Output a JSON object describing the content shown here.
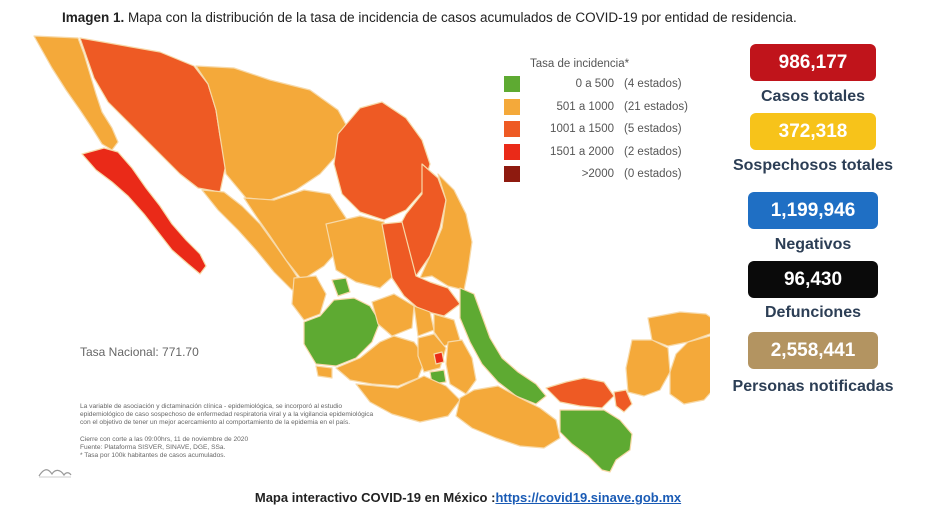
{
  "caption": {
    "prefix": "Imagen 1.",
    "text": "Mapa con la distribución de la tasa de incidencia de casos acumulados de COVID-19 por entidad de residencia."
  },
  "legend": {
    "title": "Tasa de incidencia*",
    "items": [
      {
        "range": "0 a   500",
        "count": "(4 estados)",
        "color": "#5eaa32"
      },
      {
        "range": "501 a  1000",
        "count": "(21 estados)",
        "color": "#f4a93a"
      },
      {
        "range": "1001 a  1500",
        "count": "(5 estados)",
        "color": "#ee5a24"
      },
      {
        "range": "1501 a  2000",
        "count": "(2 estados)",
        "color": "#ea2a18"
      },
      {
        "range": ">2000",
        "count": "(0 estados)",
        "color": "#8e1a0f"
      }
    ]
  },
  "map": {
    "national_rate": "Tasa Nacional: 771.70",
    "notes": [
      "La variable de asociación y dictaminación clínica - epidemiológica, se incorporó al estudio",
      "epidemiológico de caso sospechoso de enfermedad respiratoria viral y a la vigilancia epidemiológica",
      "con el objetivo de tener un mejor acercamiento al comportamiento de la epidemia en el país.",
      "",
      "Cierre con corte a las 09:00hrs, 11 de noviembre de 2020",
      "Fuente: Plataforma SISVER, SINAVE, DGE, SSa.",
      "* Tasa por 100k habitantes de casos acumulados."
    ]
  },
  "stats": [
    {
      "value": "986,177",
      "label": "Casos totales",
      "bg": "#c0141b",
      "fg": "#ffffff"
    },
    {
      "value": "372,318",
      "label": "Sospechosos totales",
      "bg": "#f7c31a",
      "fg": "#ffffff"
    },
    {
      "value": "1,199,946",
      "label": "Negativos",
      "bg": "#1f6fc4",
      "fg": "#ffffff"
    },
    {
      "value": "96,430",
      "label": "Defunciones",
      "bg": "#0a0a0a",
      "fg": "#ffffff"
    },
    {
      "value": "2,558,441",
      "label": "Personas notificadas",
      "bg": "#b39461",
      "fg": "#ffffff"
    }
  ],
  "footer": {
    "text": "Mapa interactivo COVID-19 en México :",
    "link": "https://covid19.sinave.gob.mx"
  }
}
